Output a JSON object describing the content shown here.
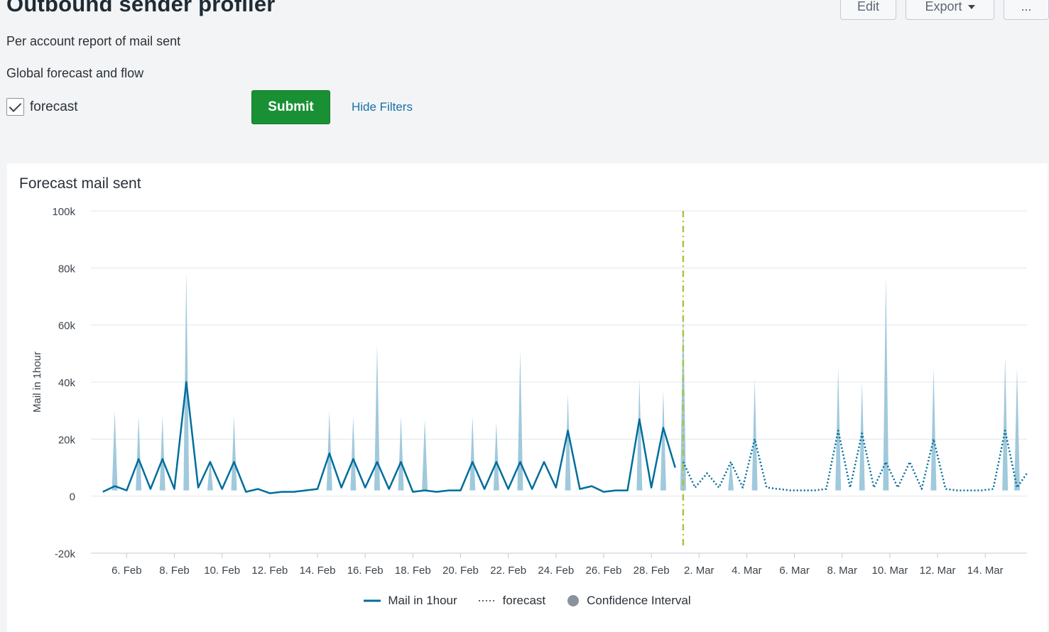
{
  "header": {
    "title": "Outbound sender profiler",
    "description": "Per account report of mail sent",
    "edit_label": "Edit",
    "export_label": "Export",
    "more_label": "..."
  },
  "filters": {
    "section_label": "Global forecast and flow",
    "forecast_checkbox_label": "forecast",
    "forecast_checked": true,
    "submit_label": "Submit",
    "hide_filters_label": "Hide Filters"
  },
  "colors": {
    "series": "#006d9c",
    "confidence": "#96c3d8",
    "divider": "#a8c443",
    "submit": "#1a9035",
    "legend_ci": "#8a939d"
  },
  "chart_data": {
    "type": "line",
    "title": "Forecast mail sent",
    "ylabel": "Mail in 1hour",
    "xlabel": "",
    "ylim": [
      -20000,
      100000
    ],
    "y_ticks": [
      "100k",
      "80k",
      "60k",
      "40k",
      "20k",
      "0",
      "-20k"
    ],
    "x_ticks": [
      "6. Feb",
      "8. Feb",
      "10. Feb",
      "12. Feb",
      "14. Feb",
      "16. Feb",
      "18. Feb",
      "20. Feb",
      "22. Feb",
      "24. Feb",
      "26. Feb",
      "28. Feb",
      "2. Mar",
      "4. Mar",
      "6. Mar",
      "8. Mar",
      "10. Mar",
      "12. Mar",
      "14. Mar"
    ],
    "x_range": [
      "2021-02-04T12:00",
      "2021-03-15T18:00"
    ],
    "forecast_start": "2021-03-01T08:00",
    "grid": true,
    "legend_position": "bottom",
    "legend": [
      "Mail in 1hour",
      "forecast",
      "Confidence Interval"
    ],
    "series": [
      {
        "name": "Mail in 1hour",
        "style": "solid",
        "x": [
          "2021-02-05",
          "2021-02-05T12:00",
          "2021-02-06",
          "2021-02-06T12:00",
          "2021-02-07",
          "2021-02-07T12:00",
          "2021-02-08",
          "2021-02-08T12:00",
          "2021-02-09",
          "2021-02-09T12:00",
          "2021-02-10",
          "2021-02-10T12:00",
          "2021-02-11",
          "2021-02-11T12:00",
          "2021-02-12",
          "2021-02-12T12:00",
          "2021-02-13",
          "2021-02-13T12:00",
          "2021-02-14",
          "2021-02-14T12:00",
          "2021-02-15",
          "2021-02-15T12:00",
          "2021-02-16",
          "2021-02-16T12:00",
          "2021-02-17",
          "2021-02-17T12:00",
          "2021-02-18",
          "2021-02-18T12:00",
          "2021-02-19",
          "2021-02-19T12:00",
          "2021-02-20",
          "2021-02-20T12:00",
          "2021-02-21",
          "2021-02-21T12:00",
          "2021-02-22",
          "2021-02-22T12:00",
          "2021-02-23",
          "2021-02-23T12:00",
          "2021-02-24",
          "2021-02-24T12:00",
          "2021-02-25",
          "2021-02-25T12:00",
          "2021-02-26",
          "2021-02-26T12:00",
          "2021-02-27",
          "2021-02-27T12:00",
          "2021-02-28",
          "2021-02-28T12:00",
          "2021-03-01"
        ],
        "y": [
          1500,
          3500,
          2000,
          13000,
          2500,
          13000,
          2500,
          40000,
          3000,
          12000,
          2500,
          12000,
          1500,
          2500,
          1000,
          1500,
          1500,
          2000,
          2500,
          15000,
          3000,
          13000,
          3000,
          12000,
          2500,
          12000,
          1500,
          2000,
          1500,
          2000,
          2000,
          12000,
          2500,
          12000,
          2500,
          12000,
          2500,
          12000,
          3000,
          23000,
          2500,
          3500,
          1500,
          2000,
          2000,
          27000,
          3000,
          24000,
          10000
        ]
      },
      {
        "name": "forecast",
        "style": "dotted",
        "x": [
          "2021-03-01T08:00",
          "2021-03-01T20:00",
          "2021-03-02T08:00",
          "2021-03-02T20:00",
          "2021-03-03T08:00",
          "2021-03-03T20:00",
          "2021-03-04T08:00",
          "2021-03-04T20:00",
          "2021-03-05T08:00",
          "2021-03-05T20:00",
          "2021-03-06T08:00",
          "2021-03-06T20:00",
          "2021-03-07T08:00",
          "2021-03-07T20:00",
          "2021-03-08T08:00",
          "2021-03-08T20:00",
          "2021-03-09T08:00",
          "2021-03-09T20:00",
          "2021-03-10T08:00",
          "2021-03-10T20:00",
          "2021-03-11T08:00",
          "2021-03-11T20:00",
          "2021-03-12T08:00",
          "2021-03-12T20:00",
          "2021-03-13T08:00",
          "2021-03-13T20:00",
          "2021-03-14T08:00",
          "2021-03-14T20:00",
          "2021-03-15T08:00",
          "2021-03-15T18:00"
        ],
        "y": [
          12000,
          3000,
          8000,
          3000,
          12000,
          3000,
          20000,
          3000,
          2500,
          2000,
          2000,
          2000,
          2500,
          23000,
          3000,
          22000,
          3000,
          12000,
          3000,
          12000,
          2500,
          20000,
          2500,
          2000,
          2000,
          2000,
          2500,
          23000,
          3000,
          8000
        ]
      }
    ],
    "confidence_interval": {
      "peaks_x": [
        "2021-02-05T12:00",
        "2021-02-06T12:00",
        "2021-02-07T12:00",
        "2021-02-08T12:00",
        "2021-02-09T12:00",
        "2021-02-10T12:00",
        "2021-02-14T12:00",
        "2021-02-15T12:00",
        "2021-02-16T12:00",
        "2021-02-17T12:00",
        "2021-02-18T12:00",
        "2021-02-20T12:00",
        "2021-02-21T12:00",
        "2021-02-22T12:00",
        "2021-02-24T12:00",
        "2021-02-27T12:00",
        "2021-02-28T12:00",
        "2021-03-01T08:00",
        "2021-03-03T08:00",
        "2021-03-04T08:00",
        "2021-03-07T20:00",
        "2021-03-08T20:00",
        "2021-03-09T20:00",
        "2021-03-11T20:00",
        "2021-03-14T20:00",
        "2021-03-15T08:00"
      ],
      "peaks_upper": [
        30000,
        28000,
        28000,
        79000,
        13000,
        28000,
        30000,
        28000,
        53000,
        28000,
        27000,
        28000,
        26000,
        51000,
        36000,
        41000,
        37000,
        67000,
        13000,
        41000,
        45000,
        40000,
        77000,
        45000,
        49000,
        45000
      ]
    }
  }
}
